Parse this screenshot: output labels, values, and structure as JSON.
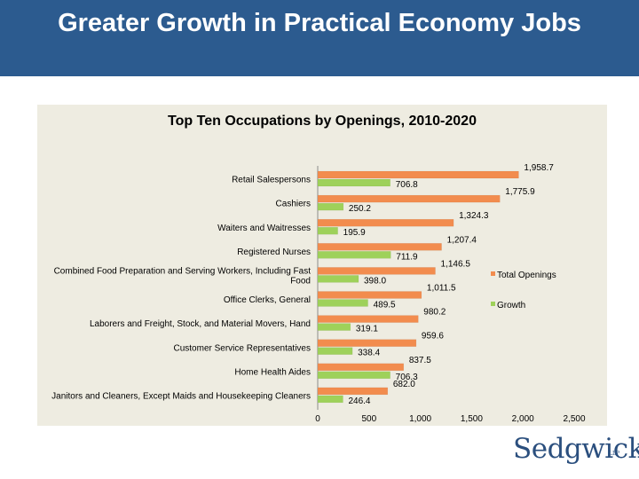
{
  "slide": {
    "title": "Greater Growth in Practical Economy Jobs",
    "logo_text": "Sedgwick",
    "logo_suffix": "LLP"
  },
  "colors": {
    "banner": "#2c5b8f",
    "panel": "#eeece1",
    "total_openings": "#f28c4e",
    "growth": "#9ed15a"
  },
  "chart_data": {
    "type": "bar",
    "orientation": "horizontal",
    "title": "Top Ten Occupations by Openings, 2010-2020",
    "categories": [
      "Retail Salespersons",
      "Cashiers",
      "Waiters and Waitresses",
      "Registered Nurses",
      "Combined Food Preparation and Serving Workers, Including Fast Food",
      "Office Clerks, General",
      "Laborers and Freight, Stock, and Material Movers, Hand",
      "Customer Service Representatives",
      "Home Health Aides",
      "Janitors and Cleaners, Except Maids and Housekeeping Cleaners"
    ],
    "series": [
      {
        "name": "Total Openings",
        "values": [
          1958.7,
          1775.9,
          1324.3,
          1207.4,
          1146.5,
          1011.5,
          980.2,
          959.6,
          837.5,
          682.0
        ]
      },
      {
        "name": "Growth",
        "values": [
          706.8,
          250.2,
          195.9,
          711.9,
          398.0,
          489.5,
          319.1,
          338.4,
          706.3,
          246.4
        ]
      }
    ],
    "data_labels": {
      "Total Openings": [
        "1,958.7",
        "1,775.9",
        "1,324.3",
        "1,207.4",
        "1,146.5",
        "1,011.5",
        "980.2",
        "959.6",
        "837.5",
        "682.0"
      ],
      "Growth": [
        "706.8",
        "250.2",
        "195.9",
        "711.9",
        "398.0",
        "489.5",
        "319.1",
        "338.4",
        "706.3",
        "246.4"
      ]
    },
    "x_ticks": [
      0,
      500,
      1000,
      1500,
      2000,
      2500
    ],
    "x_tick_labels": [
      "0",
      "500",
      "1,000",
      "1,500",
      "2,000",
      "2,500"
    ],
    "xlim": [
      0,
      2500
    ],
    "xlabel": "",
    "ylabel": "",
    "grid": false,
    "legend": "right"
  }
}
